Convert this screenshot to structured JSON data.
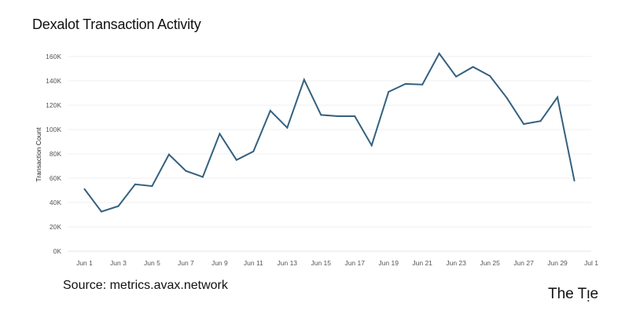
{
  "title": "Dexalot Transaction Activity",
  "source": "Source: metrics.avax.network",
  "brand": "The Tie",
  "chart_data": {
    "type": "line",
    "title": "Dexalot Transaction Activity",
    "xlabel": "",
    "ylabel": "Transaction Count",
    "ylim": [
      0,
      160000
    ],
    "yticks": [
      0,
      20000,
      40000,
      60000,
      80000,
      100000,
      120000,
      140000,
      160000
    ],
    "ytick_labels": [
      "0K",
      "20K",
      "40K",
      "60K",
      "80K",
      "100K",
      "120K",
      "140K",
      "160K"
    ],
    "xlim": [
      "2024-05-31",
      "2024-07-01"
    ],
    "xtick_labels": [
      "Jun 1",
      "Jun 3",
      "Jun 5",
      "Jun 7",
      "Jun 9",
      "Jun 11",
      "Jun 13",
      "Jun 15",
      "Jun 17",
      "Jun 19",
      "Jun 21",
      "Jun 23",
      "Jun 25",
      "Jun 27",
      "Jun 29",
      "Jul 1"
    ],
    "grid": true,
    "line_color": "#34607f",
    "series": [
      {
        "x": [
          "Jun 1",
          "Jun 2",
          "Jun 3",
          "Jun 4",
          "Jun 5",
          "Jun 6",
          "Jun 7",
          "Jun 8",
          "Jun 9",
          "Jun 10",
          "Jun 11",
          "Jun 12",
          "Jun 13",
          "Jun 14",
          "Jun 15",
          "Jun 16",
          "Jun 17",
          "Jun 18",
          "Jun 19",
          "Jun 20",
          "Jun 21",
          "Jun 22",
          "Jun 23",
          "Jun 24",
          "Jun 25",
          "Jun 26",
          "Jun 27",
          "Jun 28",
          "Jun 29",
          "Jun 30"
        ],
        "values": [
          51000,
          32500,
          37000,
          55000,
          53500,
          79500,
          66000,
          61000,
          96500,
          75000,
          82000,
          115500,
          101500,
          141000,
          112000,
          111000,
          111000,
          87000,
          131000,
          137500,
          137000,
          162500,
          143500,
          151500,
          144000,
          126000,
          104500,
          107000,
          126500,
          58000
        ]
      }
    ]
  }
}
